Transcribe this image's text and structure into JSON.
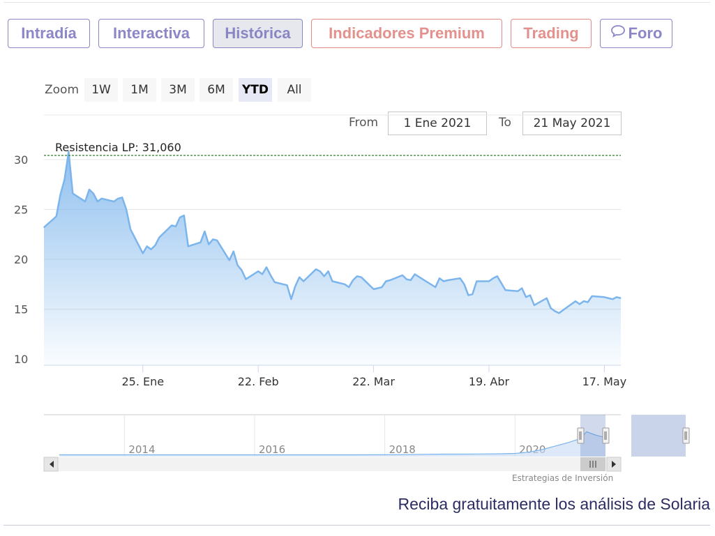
{
  "tabs": [
    {
      "label": "Intradía",
      "style": "normal"
    },
    {
      "label": "Interactiva",
      "style": "normal"
    },
    {
      "label": "Histórica",
      "style": "active"
    },
    {
      "label": "Indicadores Premium",
      "style": "premium"
    },
    {
      "label": "Trading",
      "style": "premium"
    },
    {
      "label": "Foro",
      "style": "normal",
      "icon": "chat-bubble-icon"
    }
  ],
  "zoom": {
    "label": "Zoom",
    "buttons": [
      "1W",
      "1M",
      "3M",
      "6M",
      "YTD",
      "All"
    ],
    "selected": "YTD"
  },
  "range": {
    "from_label": "From",
    "from_value": "1 Ene 2021",
    "to_label": "To",
    "to_value": "21 May 2021"
  },
  "colors": {
    "line": "#7cb5ec",
    "tab_accent": "#8b87c8",
    "premium_accent": "#e2918c",
    "resistance": "#2e7d32",
    "cta_text": "#2c2c63"
  },
  "chart_data": {
    "type": "area",
    "title": "",
    "xlabel": "",
    "ylabel": "",
    "ylim": [
      10,
      30
    ],
    "yticks": [
      10,
      15,
      20,
      25,
      30
    ],
    "xlim": [
      "2021-01-01",
      "2021-05-21"
    ],
    "x_ticks": [
      {
        "date": "2021-01-25",
        "label": "25. Ene"
      },
      {
        "date": "2021-02-22",
        "label": "22. Feb"
      },
      {
        "date": "2021-03-22",
        "label": "22. Mar"
      },
      {
        "date": "2021-04-19",
        "label": "19. Abr"
      },
      {
        "date": "2021-05-17",
        "label": "17. May"
      }
    ],
    "grid": true,
    "series": [
      {
        "x": [
          "2021-01-01",
          "2021-01-04",
          "2021-01-05",
          "2021-01-06",
          "2021-01-07",
          "2021-01-08",
          "2021-01-11",
          "2021-01-12",
          "2021-01-13",
          "2021-01-14",
          "2021-01-15",
          "2021-01-18",
          "2021-01-19",
          "2021-01-20",
          "2021-01-21",
          "2021-01-22",
          "2021-01-25",
          "2021-01-26",
          "2021-01-27",
          "2021-01-28",
          "2021-01-29",
          "2021-02-01",
          "2021-02-02",
          "2021-02-03",
          "2021-02-04",
          "2021-02-05",
          "2021-02-08",
          "2021-02-09",
          "2021-02-10",
          "2021-02-11",
          "2021-02-12",
          "2021-02-15",
          "2021-02-16",
          "2021-02-17",
          "2021-02-18",
          "2021-02-19",
          "2021-02-22",
          "2021-02-23",
          "2021-02-24",
          "2021-02-25",
          "2021-02-26",
          "2021-03-01",
          "2021-03-02",
          "2021-03-03",
          "2021-03-04",
          "2021-03-05",
          "2021-03-08",
          "2021-03-09",
          "2021-03-10",
          "2021-03-11",
          "2021-03-12",
          "2021-03-15",
          "2021-03-16",
          "2021-03-17",
          "2021-03-18",
          "2021-03-19",
          "2021-03-22",
          "2021-03-23",
          "2021-03-24",
          "2021-03-25",
          "2021-03-26",
          "2021-03-29",
          "2021-03-30",
          "2021-03-31",
          "2021-04-01",
          "2021-04-06",
          "2021-04-07",
          "2021-04-08",
          "2021-04-09",
          "2021-04-12",
          "2021-04-13",
          "2021-04-14",
          "2021-04-15",
          "2021-04-16",
          "2021-04-19",
          "2021-04-20",
          "2021-04-21",
          "2021-04-22",
          "2021-04-23",
          "2021-04-26",
          "2021-04-27",
          "2021-04-28",
          "2021-04-29",
          "2021-04-30",
          "2021-05-03",
          "2021-05-04",
          "2021-05-05",
          "2021-05-06",
          "2021-05-07",
          "2021-05-10",
          "2021-05-11",
          "2021-05-12",
          "2021-05-13",
          "2021-05-14",
          "2021-05-17",
          "2021-05-18",
          "2021-05-19",
          "2021-05-20",
          "2021-05-21"
        ],
        "y": [
          23.2,
          24.3,
          26.5,
          28.0,
          30.8,
          26.6,
          25.8,
          27.0,
          26.6,
          25.8,
          26.1,
          25.8,
          26.1,
          26.2,
          25.0,
          23.0,
          20.6,
          21.3,
          21.0,
          21.4,
          22.2,
          23.4,
          23.3,
          24.2,
          24.4,
          21.3,
          21.7,
          22.8,
          21.5,
          22.0,
          21.9,
          19.9,
          20.8,
          19.4,
          18.9,
          18.0,
          18.8,
          18.5,
          19.2,
          18.4,
          17.7,
          17.4,
          16.0,
          17.3,
          18.2,
          17.8,
          19.0,
          18.8,
          18.3,
          18.8,
          17.8,
          17.5,
          17.2,
          17.9,
          18.3,
          18.2,
          17.0,
          17.1,
          17.2,
          17.8,
          17.9,
          18.4,
          18.0,
          17.9,
          18.5,
          17.2,
          18.1,
          17.8,
          17.9,
          18.1,
          17.5,
          16.4,
          16.5,
          17.8,
          17.8,
          18.1,
          18.3,
          17.6,
          16.9,
          16.8,
          17.1,
          16.2,
          16.4,
          15.4,
          16.1,
          15.1,
          14.8,
          14.6,
          14.9,
          15.8,
          15.5,
          15.8,
          15.7,
          16.3,
          16.2,
          16.1,
          16.0,
          16.2,
          16.1
        ]
      }
    ],
    "plot_lines": [
      {
        "value": 31.06,
        "label": "Resistencia LP: 31,060",
        "style": "dashed"
      }
    ],
    "navigator": {
      "tick_labels": [
        "2014",
        "2016",
        "2018",
        "2020"
      ],
      "x_years": [
        2013.0,
        2013.5,
        2014.0,
        2014.5,
        2015.0,
        2015.5,
        2016.0,
        2016.5,
        2017.0,
        2017.5,
        2018.0,
        2018.3,
        2018.6,
        2018.9,
        2019.2,
        2019.5,
        2019.8,
        2020.0,
        2020.2,
        2020.4,
        2020.6,
        2020.8,
        2021.0,
        2021.1,
        2021.25,
        2021.39
      ],
      "y": [
        0.3,
        0.3,
        0.3,
        0.3,
        0.3,
        0.3,
        0.3,
        0.3,
        0.3,
        0.3,
        0.35,
        0.5,
        0.7,
        0.9,
        0.9,
        1.0,
        1.2,
        1.5,
        2.5,
        4.5,
        7.5,
        10.5,
        14.0,
        20.0,
        17.0,
        15.0
      ]
    }
  },
  "credit": "Estrategias de Inversión",
  "cta": "Reciba gratuitamente los análisis de Solaria"
}
